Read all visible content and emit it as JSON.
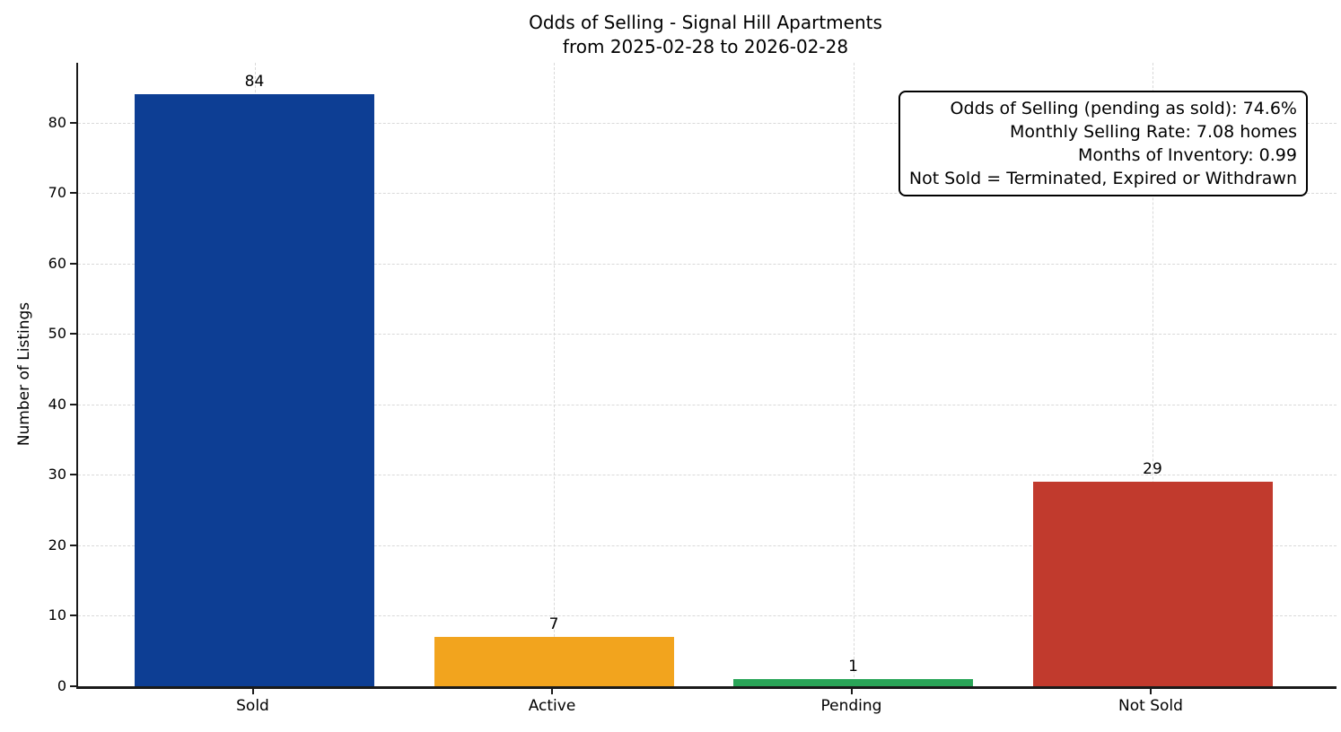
{
  "chart_data": {
    "type": "bar",
    "title": "Odds of Selling - Signal Hill Apartments",
    "subtitle": "from 2025-02-28 to 2026-02-28",
    "categories": [
      "Sold",
      "Active",
      "Pending",
      "Not Sold"
    ],
    "values": [
      84,
      7,
      1,
      29
    ],
    "bar_colors": [
      "#0d3e94",
      "#f2a41e",
      "#2aa558",
      "#c13a2d"
    ],
    "xlabel": "",
    "ylabel": "Number of Listings",
    "ylim": [
      0,
      88.5
    ],
    "yticks": [
      0,
      10,
      20,
      30,
      40,
      50,
      60,
      70,
      80
    ],
    "grid": {
      "style": "dashed",
      "axes": "both",
      "color": "#d9d9d9"
    },
    "legend": "none",
    "annotation_box": {
      "position": "top-right",
      "border_color": "#000000",
      "background": "#ffffff",
      "lines": [
        "Odds of Selling (pending as sold): 74.6%",
        "Monthly Selling Rate: 7.08 homes",
        "Months of Inventory: 0.99",
        "Not Sold = Terminated, Expired or Withdrawn"
      ]
    }
  }
}
